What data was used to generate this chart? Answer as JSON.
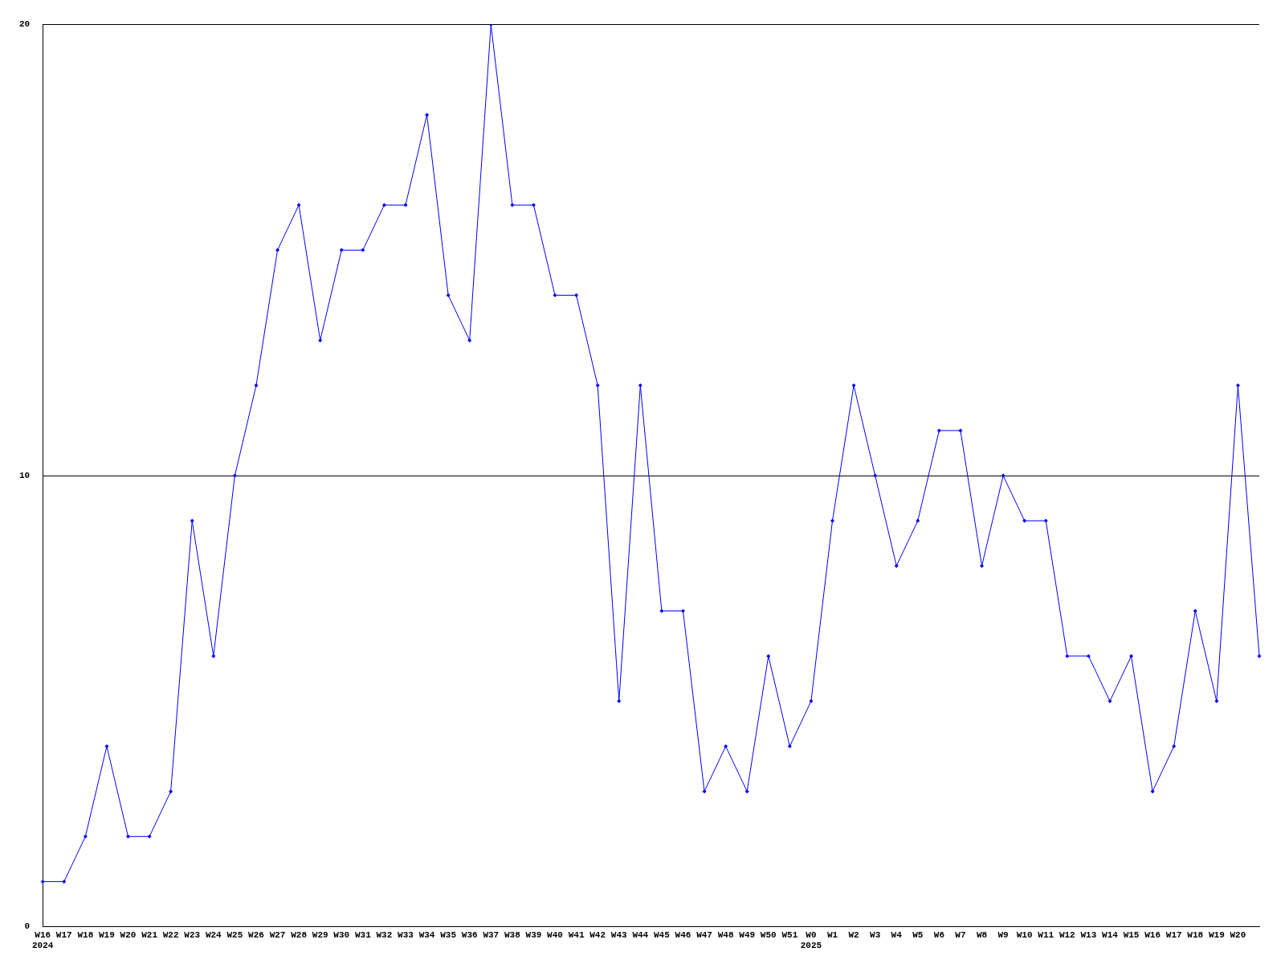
{
  "chart_data": {
    "type": "line",
    "categories": [
      "W16\n2024",
      "W17",
      "W18",
      "W19",
      "W20",
      "W21",
      "W22",
      "W23",
      "W24",
      "W25",
      "W26",
      "W27",
      "W28",
      "W29",
      "W30",
      "W31",
      "W32",
      "W33",
      "W34",
      "W35",
      "W36",
      "W37",
      "W38",
      "W39",
      "W40",
      "W41",
      "W42",
      "W43",
      "W44",
      "W45",
      "W46",
      "W47",
      "W48",
      "W49",
      "W50",
      "W51",
      "W0\n2025",
      "W1",
      "W2",
      "W3",
      "W4",
      "W5",
      "W6",
      "W7",
      "W8",
      "W9",
      "W10",
      "W11",
      "W12",
      "W13",
      "W14",
      "W15",
      "W16",
      "W17",
      "W18",
      "W19",
      "W20",
      null
    ],
    "series": [
      {
        "color": "#0000ff",
        "values": [
          1,
          1,
          2,
          4,
          2,
          2,
          3,
          9,
          6,
          10,
          12,
          15,
          16,
          13,
          15,
          15,
          16,
          16,
          18,
          14,
          13,
          20,
          16,
          16,
          14,
          14,
          12,
          5,
          12,
          7,
          7,
          3,
          4,
          3,
          6,
          4,
          5,
          9,
          12,
          10,
          8,
          9,
          11,
          11,
          8,
          10,
          9,
          9,
          6,
          6,
          5,
          6,
          3,
          4,
          7,
          5,
          12,
          6
        ]
      }
    ],
    "ylim": [
      0,
      20
    ],
    "yticks": [
      0,
      10,
      20
    ],
    "grid": "y",
    "legend": false,
    "marker": "diamond",
    "line_style": "solid"
  }
}
